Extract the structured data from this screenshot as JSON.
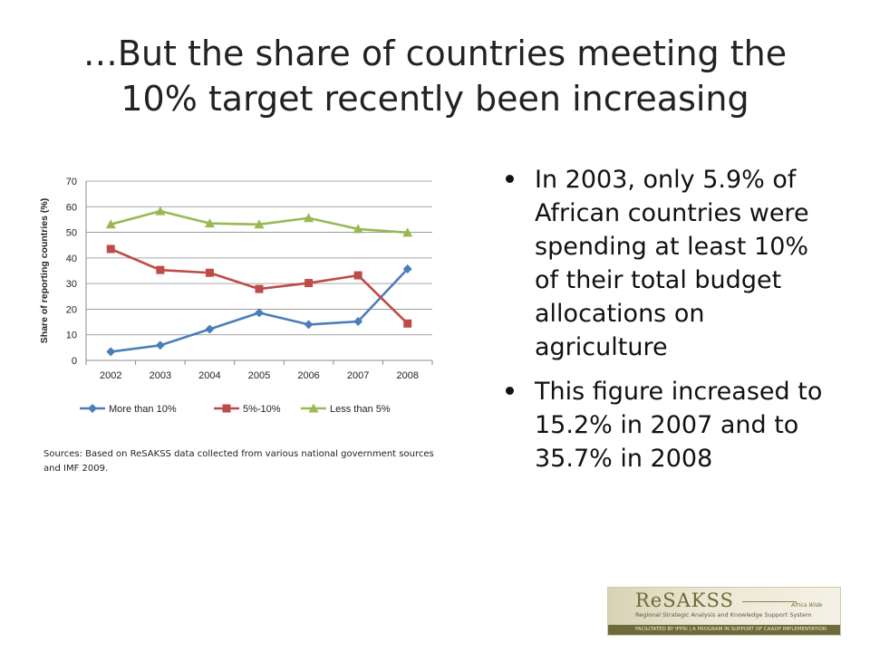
{
  "slide": {
    "title_line1": "…But the share of countries meeting the",
    "title_line2": "10% target recently been increasing",
    "sources": "Sources: Based on ReSAKSS data collected from various national government sources and IMF 2009.",
    "bullets": [
      "In 2003, only 5.9% of African countries were spending at least 10% of their total budget allocations on agriculture",
      "This figure increased to 15.2% in 2007 and to 35.7% in 2008"
    ]
  },
  "logo": {
    "brand": "ReSAKSS",
    "tag": "Africa Wide",
    "subtitle": "Regional Strategic Analysis and Knowledge Support System",
    "footer": "FACILITATED BY IFPRI  |  A PROGRAM IN SUPPORT OF CAADP IMPLEMENTATION"
  },
  "chart_data": {
    "type": "line",
    "categories": [
      "2002",
      "2003",
      "2004",
      "2005",
      "2006",
      "2007",
      "2008"
    ],
    "ylabel": "Share of reporting countries (%)",
    "xlabel": "",
    "ylim": [
      0,
      70
    ],
    "yticks": [
      0,
      10,
      20,
      30,
      40,
      50,
      60,
      70
    ],
    "grid": true,
    "legend_position": "bottom",
    "series": [
      {
        "name": "More than 10%",
        "color": "#4a7ebb",
        "marker": "diamond",
        "values": [
          3.4,
          5.9,
          12.2,
          18.6,
          14.0,
          15.2,
          35.7
        ]
      },
      {
        "name": "5%-10%",
        "color": "#be4b48",
        "marker": "square",
        "values": [
          43.5,
          35.3,
          34.2,
          27.9,
          30.2,
          33.2,
          14.4
        ]
      },
      {
        "name": "Less than 5%",
        "color": "#98b954",
        "marker": "triangle",
        "values": [
          53.1,
          58.3,
          53.5,
          53.1,
          55.6,
          51.3,
          49.9
        ]
      }
    ]
  }
}
